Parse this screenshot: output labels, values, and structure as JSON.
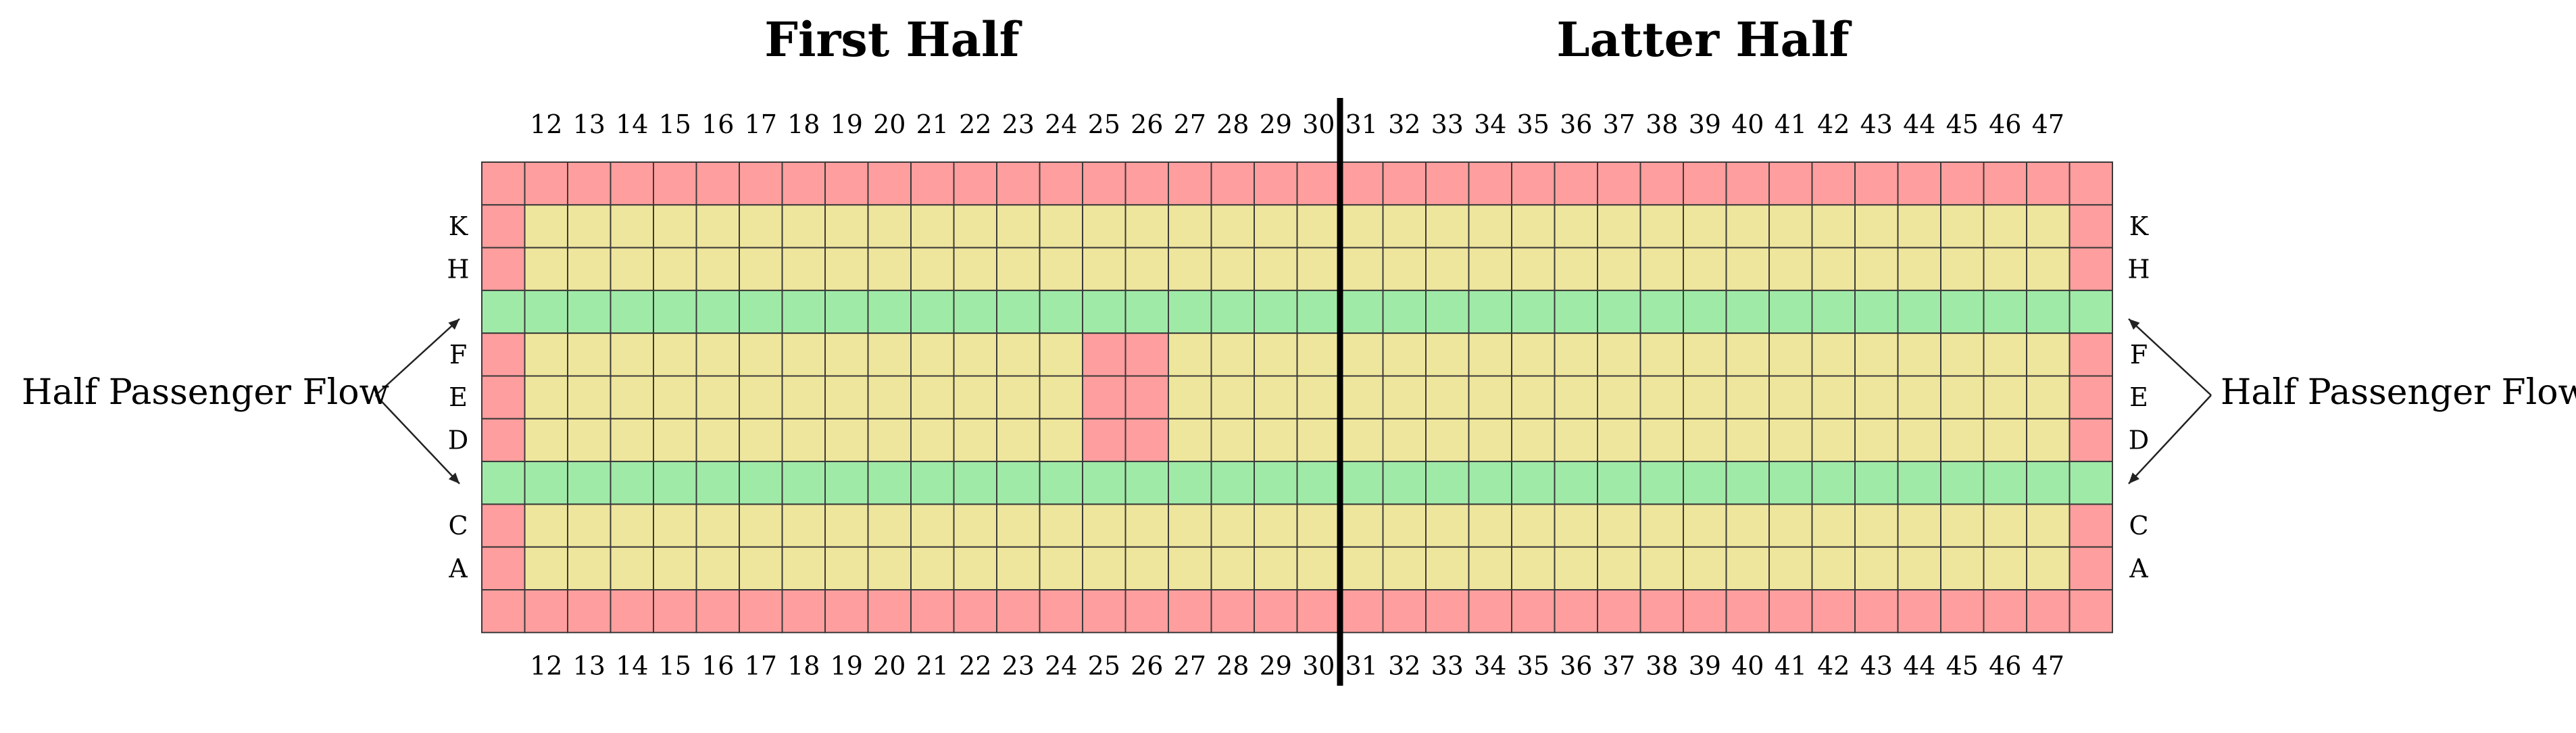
{
  "titles": {
    "first_half": "First Half",
    "latter_half": "Latter Half"
  },
  "flow": {
    "left_label": "Half Passenger Flow",
    "right_label": "Half Passenger Flow"
  },
  "seat_rows": {
    "upper": [
      "K",
      "H"
    ],
    "middle": [
      "F",
      "E",
      "D"
    ],
    "lower": [
      "C",
      "A"
    ]
  },
  "columns": [
    "12",
    "13",
    "14",
    "15",
    "16",
    "17",
    "18",
    "19",
    "20",
    "21",
    "22",
    "23",
    "24",
    "25",
    "26",
    "27",
    "28",
    "29",
    "30",
    "31",
    "32",
    "33",
    "34",
    "35",
    "36",
    "37",
    "38",
    "39",
    "40",
    "41",
    "42",
    "43",
    "44",
    "45",
    "46",
    "47"
  ],
  "blocked_columns_in_middle_rows": [
    "25",
    "26"
  ],
  "divider_after_column": "30",
  "colors": {
    "boundary": "#ff9e9e",
    "seat": "#efe69d",
    "aisle": "#a0eaa8",
    "grid_line": "#3a3a3a",
    "divider": "#000000"
  }
}
